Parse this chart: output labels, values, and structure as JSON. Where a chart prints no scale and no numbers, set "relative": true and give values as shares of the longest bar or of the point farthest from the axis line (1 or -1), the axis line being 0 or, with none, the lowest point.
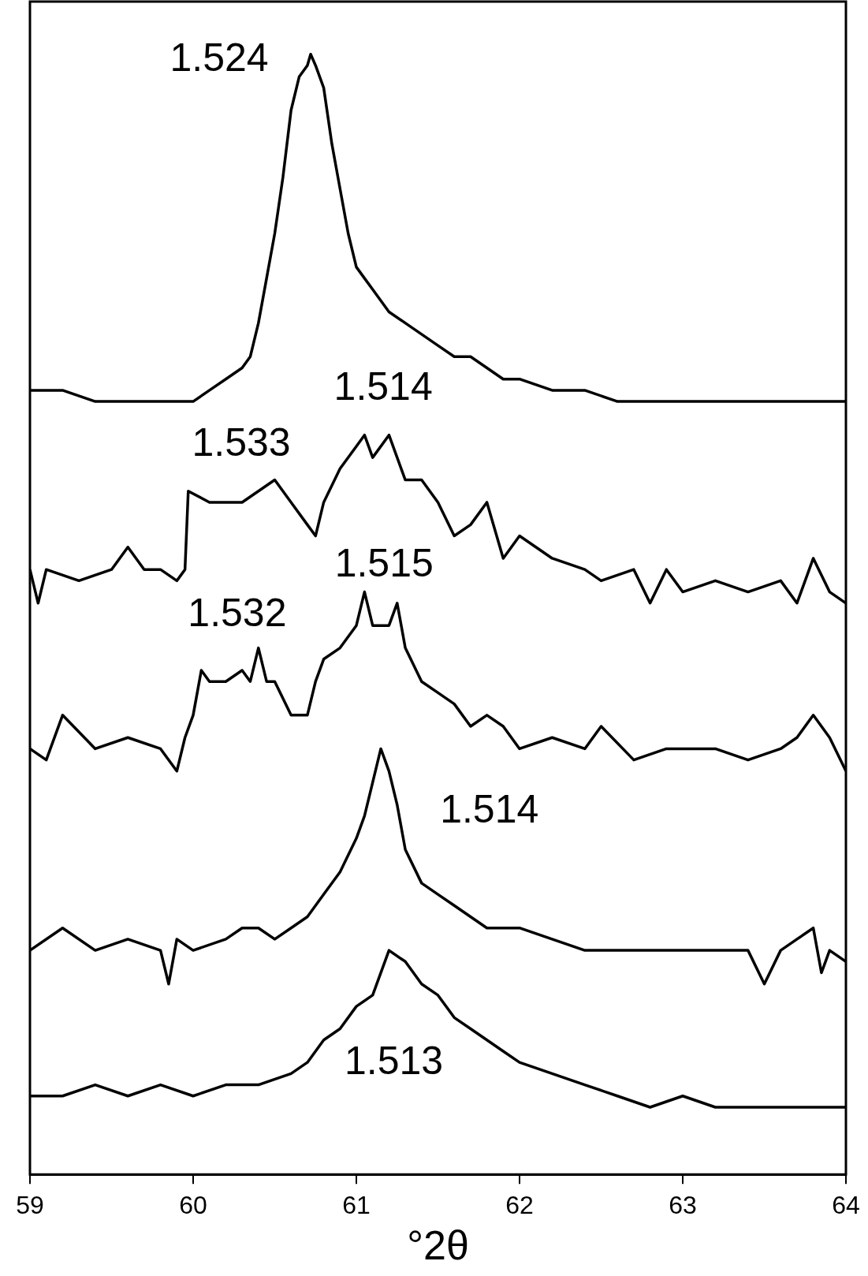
{
  "chart_data": {
    "type": "line",
    "relative": true,
    "xlabel": "°2θ",
    "xlim": [
      59,
      64
    ],
    "xticks": [
      59,
      60,
      61,
      62,
      63,
      64
    ],
    "grid": false,
    "legend": false,
    "marker": "none",
    "line_style": "solid",
    "series": [
      {
        "color": "#000000",
        "x": [
          59.0,
          59.2,
          59.4,
          59.6,
          59.8,
          60.0,
          60.1,
          60.2,
          60.3,
          60.35,
          60.4,
          60.45,
          60.5,
          60.55,
          60.6,
          60.65,
          60.7,
          60.72,
          60.75,
          60.8,
          60.85,
          60.9,
          60.95,
          61.0,
          61.05,
          61.1,
          61.2,
          61.3,
          61.4,
          61.5,
          61.6,
          61.7,
          61.8,
          61.9,
          62.0,
          62.2,
          62.4,
          62.6,
          62.8,
          63.0,
          63.2,
          63.4,
          63.6,
          63.8,
          64.0
        ],
        "values": [
          0.7,
          0.7,
          0.69,
          0.69,
          0.69,
          0.69,
          0.7,
          0.71,
          0.72,
          0.73,
          0.76,
          0.8,
          0.84,
          0.89,
          0.95,
          0.98,
          0.99,
          1,
          0.99,
          0.97,
          0.92,
          0.88,
          0.84,
          0.81,
          0.8,
          0.79,
          0.77,
          0.76,
          0.75,
          0.74,
          0.73,
          0.73,
          0.72,
          0.71,
          0.71,
          0.7,
          0.7,
          0.69,
          0.69,
          0.69,
          0.69,
          0.69,
          0.69,
          0.69,
          0.69
        ]
      },
      {
        "color": "#000000",
        "x": [
          59.0,
          59.05,
          59.1,
          59.3,
          59.5,
          59.6,
          59.7,
          59.8,
          59.9,
          59.95,
          59.97,
          60.1,
          60.2,
          60.3,
          60.5,
          60.6,
          60.7,
          60.75,
          60.8,
          60.9,
          61.0,
          61.05,
          61.1,
          61.2,
          61.3,
          61.4,
          61.5,
          61.6,
          61.7,
          61.8,
          61.9,
          62.0,
          62.2,
          62.4,
          62.5,
          62.7,
          62.8,
          62.9,
          63.0,
          63.2,
          63.4,
          63.6,
          63.7,
          63.8,
          63.9,
          64.0
        ],
        "values": [
          0.54,
          0.51,
          0.54,
          0.53,
          0.54,
          0.56,
          0.54,
          0.54,
          0.53,
          0.54,
          0.61,
          0.6,
          0.6,
          0.6,
          0.62,
          0.6,
          0.58,
          0.57,
          0.6,
          0.63,
          0.65,
          0.66,
          0.64,
          0.66,
          0.62,
          0.62,
          0.6,
          0.57,
          0.58,
          0.6,
          0.55,
          0.57,
          0.55,
          0.54,
          0.53,
          0.54,
          0.51,
          0.54,
          0.52,
          0.53,
          0.52,
          0.53,
          0.51,
          0.55,
          0.52,
          0.51
        ]
      },
      {
        "color": "#000000",
        "x": [
          59.0,
          59.1,
          59.2,
          59.4,
          59.6,
          59.8,
          59.9,
          59.95,
          60.0,
          60.05,
          60.1,
          60.2,
          60.3,
          60.35,
          60.4,
          60.45,
          60.5,
          60.6,
          60.7,
          60.75,
          60.8,
          60.9,
          61.0,
          61.05,
          61.1,
          61.2,
          61.25,
          61.3,
          61.4,
          61.5,
          61.6,
          61.7,
          61.8,
          61.9,
          62.0,
          62.2,
          62.4,
          62.5,
          62.7,
          62.9,
          63.0,
          63.2,
          63.4,
          63.6,
          63.7,
          63.8,
          63.9,
          64.0
        ],
        "values": [
          0.38,
          0.37,
          0.41,
          0.38,
          0.39,
          0.38,
          0.36,
          0.39,
          0.41,
          0.45,
          0.44,
          0.44,
          0.45,
          0.44,
          0.47,
          0.44,
          0.44,
          0.41,
          0.41,
          0.44,
          0.46,
          0.47,
          0.49,
          0.52,
          0.49,
          0.49,
          0.51,
          0.47,
          0.44,
          0.43,
          0.42,
          0.4,
          0.41,
          0.4,
          0.38,
          0.39,
          0.38,
          0.4,
          0.37,
          0.38,
          0.38,
          0.38,
          0.37,
          0.38,
          0.39,
          0.41,
          0.39,
          0.36
        ]
      },
      {
        "color": "#000000",
        "x": [
          59.0,
          59.2,
          59.4,
          59.6,
          59.8,
          59.85,
          59.9,
          60.0,
          60.2,
          60.3,
          60.4,
          60.5,
          60.6,
          60.7,
          60.8,
          60.9,
          61.0,
          61.05,
          61.1,
          61.15,
          61.2,
          61.25,
          61.3,
          61.4,
          61.5,
          61.6,
          61.7,
          61.8,
          62.0,
          62.2,
          62.4,
          62.6,
          62.8,
          63.0,
          63.2,
          63.4,
          63.5,
          63.6,
          63.7,
          63.8,
          63.85,
          63.9,
          64.0
        ],
        "values": [
          0.2,
          0.22,
          0.2,
          0.21,
          0.2,
          0.17,
          0.21,
          0.2,
          0.21,
          0.22,
          0.22,
          0.21,
          0.22,
          0.23,
          0.25,
          0.27,
          0.3,
          0.32,
          0.35,
          0.38,
          0.36,
          0.33,
          0.29,
          0.26,
          0.25,
          0.24,
          0.23,
          0.22,
          0.22,
          0.21,
          0.2,
          0.2,
          0.2,
          0.2,
          0.2,
          0.2,
          0.17,
          0.2,
          0.21,
          0.22,
          0.18,
          0.2,
          0.19
        ]
      },
      {
        "color": "#000000",
        "x": [
          59.0,
          59.2,
          59.4,
          59.6,
          59.8,
          60.0,
          60.2,
          60.4,
          60.6,
          60.7,
          60.8,
          60.9,
          61.0,
          61.1,
          61.2,
          61.3,
          61.4,
          61.5,
          61.6,
          61.7,
          61.8,
          61.9,
          62.0,
          62.2,
          62.4,
          62.6,
          62.8,
          63.0,
          63.2,
          63.4,
          63.6,
          63.8,
          64.0
        ],
        "values": [
          0.07,
          0.07,
          0.08,
          0.07,
          0.08,
          0.07,
          0.08,
          0.08,
          0.09,
          0.1,
          0.12,
          0.13,
          0.15,
          0.16,
          0.2,
          0.19,
          0.17,
          0.16,
          0.14,
          0.13,
          0.12,
          0.11,
          0.1,
          0.09,
          0.08,
          0.07,
          0.06,
          0.07,
          0.06,
          0.06,
          0.06,
          0.06,
          0.06
        ]
      }
    ],
    "annotations": [
      "1.524",
      "1.514",
      "1.533",
      "1.515",
      "1.532",
      "1.514",
      "1.513"
    ]
  }
}
